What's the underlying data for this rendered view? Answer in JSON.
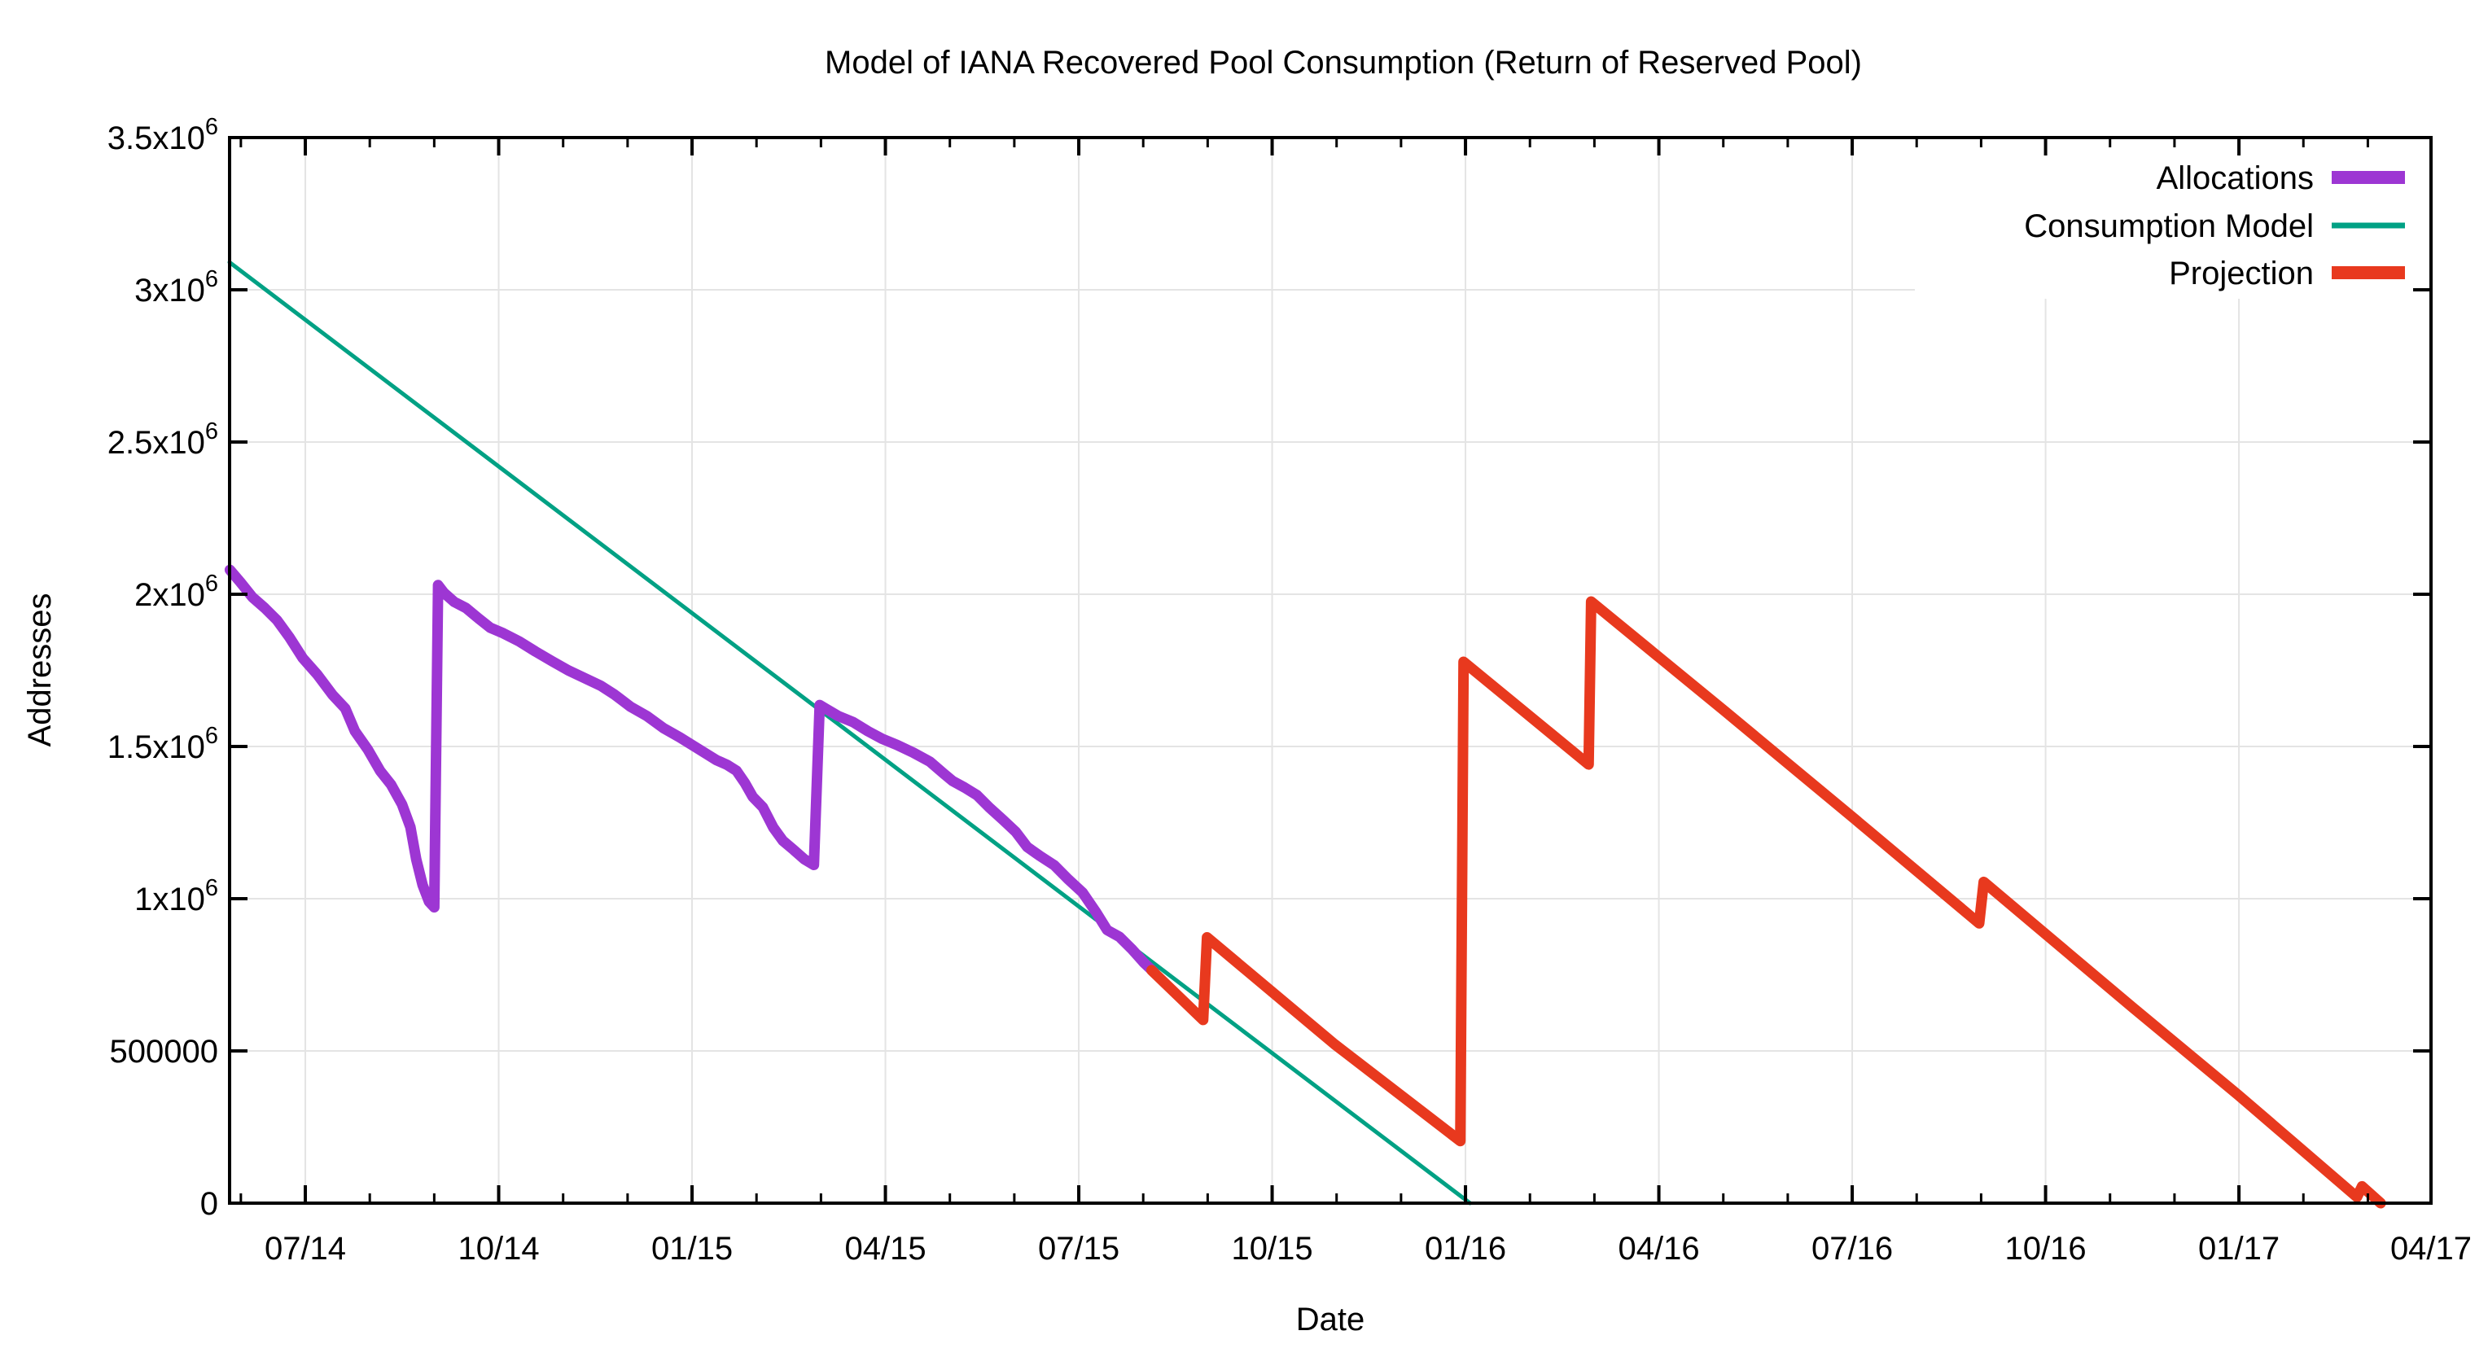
{
  "chart": {
    "title": "Model of IANA Recovered Pool Consumption (Return of Reserved Pool)",
    "xlabel": "Date",
    "ylabel": "Addresses",
    "background": "#ffffff",
    "grid_color": "#e4e4e4",
    "axis_color": "#000000",
    "text_color": "#000000"
  },
  "chart_data": {
    "type": "line",
    "title": "Model of IANA Recovered Pool Consumption (Return of Reserved Pool)",
    "xlabel": "Date",
    "ylabel": "Addresses",
    "x_unit": "months relative to 07/14 tick (major ticks every 3 months, minor ticks monthly)",
    "x_range": [
      -1.175,
      32.98
    ],
    "y_range": [
      0,
      3500000
    ],
    "grid": true,
    "legend_position": "top-right-inside",
    "x_major_ticks": [
      {
        "m": 0,
        "label": "07/14"
      },
      {
        "m": 3,
        "label": "10/14"
      },
      {
        "m": 6,
        "label": "01/15"
      },
      {
        "m": 9,
        "label": "04/15"
      },
      {
        "m": 12,
        "label": "07/15"
      },
      {
        "m": 15,
        "label": "10/15"
      },
      {
        "m": 18,
        "label": "01/16"
      },
      {
        "m": 21,
        "label": "04/16"
      },
      {
        "m": 24,
        "label": "07/16"
      },
      {
        "m": 27,
        "label": "10/16"
      },
      {
        "m": 30,
        "label": "01/17"
      },
      {
        "m": 33,
        "label": "04/17"
      }
    ],
    "x_minor_step": 1,
    "y_ticks": [
      {
        "v": 0,
        "label": "0"
      },
      {
        "v": 500000,
        "label": "500000"
      },
      {
        "v": 1000000,
        "label": "1x10^6"
      },
      {
        "v": 1500000,
        "label": "1.5x10^6"
      },
      {
        "v": 2000000,
        "label": "2x10^6"
      },
      {
        "v": 2500000,
        "label": "2.5x10^6"
      },
      {
        "v": 3000000,
        "label": "3x10^6"
      },
      {
        "v": 3500000,
        "label": "3.5x10^6"
      }
    ],
    "series": [
      {
        "name": "Consumption Model",
        "color": "#00a184",
        "stroke_width": 5,
        "points": [
          [
            -1.175,
            3090000
          ],
          [
            18.07,
            0
          ]
        ]
      },
      {
        "name": "Allocations",
        "color": "#9d36d3",
        "stroke_width": 13,
        "points": [
          [
            -1.17,
            2080000
          ],
          [
            -1.01,
            2040000
          ],
          [
            -0.82,
            1990000
          ],
          [
            -0.63,
            1955000
          ],
          [
            -0.44,
            1915000
          ],
          [
            -0.25,
            1860000
          ],
          [
            -0.04,
            1790000
          ],
          [
            0.19,
            1735000
          ],
          [
            0.42,
            1670000
          ],
          [
            0.62,
            1625000
          ],
          [
            0.77,
            1550000
          ],
          [
            0.97,
            1490000
          ],
          [
            1.16,
            1420000
          ],
          [
            1.33,
            1375000
          ],
          [
            1.5,
            1310000
          ],
          [
            1.63,
            1235000
          ],
          [
            1.72,
            1130000
          ],
          [
            1.82,
            1045000
          ],
          [
            1.92,
            990000
          ],
          [
            2.0,
            972000
          ],
          [
            2.06,
            2030000
          ],
          [
            2.15,
            2005000
          ],
          [
            2.31,
            1975000
          ],
          [
            2.49,
            1955000
          ],
          [
            2.69,
            1920000
          ],
          [
            2.87,
            1890000
          ],
          [
            3.07,
            1872000
          ],
          [
            3.32,
            1845000
          ],
          [
            3.57,
            1812000
          ],
          [
            3.83,
            1780000
          ],
          [
            4.08,
            1750000
          ],
          [
            4.33,
            1725000
          ],
          [
            4.58,
            1700000
          ],
          [
            4.8,
            1670000
          ],
          [
            5.05,
            1630000
          ],
          [
            5.3,
            1600000
          ],
          [
            5.56,
            1560000
          ],
          [
            5.81,
            1530000
          ],
          [
            6.0,
            1505000
          ],
          [
            6.19,
            1480000
          ],
          [
            6.38,
            1455000
          ],
          [
            6.54,
            1440000
          ],
          [
            6.69,
            1420000
          ],
          [
            6.82,
            1380000
          ],
          [
            6.94,
            1335000
          ],
          [
            7.1,
            1300000
          ],
          [
            7.26,
            1234000
          ],
          [
            7.41,
            1190000
          ],
          [
            7.58,
            1160000
          ],
          [
            7.74,
            1130000
          ],
          [
            7.89,
            1111000
          ],
          [
            7.98,
            1636000
          ],
          [
            8.07,
            1625000
          ],
          [
            8.27,
            1600000
          ],
          [
            8.5,
            1580000
          ],
          [
            8.73,
            1550000
          ],
          [
            8.95,
            1525000
          ],
          [
            9.18,
            1505000
          ],
          [
            9.43,
            1480000
          ],
          [
            9.69,
            1450000
          ],
          [
            9.91,
            1410000
          ],
          [
            10.04,
            1387000
          ],
          [
            10.23,
            1365000
          ],
          [
            10.42,
            1340000
          ],
          [
            10.61,
            1300000
          ],
          [
            10.82,
            1260000
          ],
          [
            11.02,
            1220000
          ],
          [
            11.2,
            1170000
          ],
          [
            11.4,
            1140000
          ],
          [
            11.62,
            1110000
          ],
          [
            11.83,
            1065000
          ],
          [
            12.06,
            1020000
          ],
          [
            12.27,
            955000
          ],
          [
            12.44,
            897000
          ],
          [
            12.63,
            875000
          ],
          [
            12.82,
            835000
          ],
          [
            13.01,
            790000
          ],
          [
            13.17,
            758000
          ]
        ]
      },
      {
        "name": "Projection",
        "color": "#e8391e",
        "stroke_width": 13,
        "points": [
          [
            13.13,
            765000
          ],
          [
            13.93,
            602000
          ],
          [
            13.99,
            873000
          ],
          [
            15.97,
            522000
          ],
          [
            17.92,
            204000
          ],
          [
            17.97,
            1778000
          ],
          [
            19.91,
            1441000
          ],
          [
            19.95,
            1976000
          ],
          [
            22.03,
            1615000
          ],
          [
            24.05,
            1260000
          ],
          [
            25.97,
            919000
          ],
          [
            26.04,
            1055000
          ],
          [
            28.35,
            643000
          ],
          [
            29.99,
            355000
          ],
          [
            31.83,
            20000
          ],
          [
            31.91,
            55000
          ],
          [
            32.2,
            0
          ]
        ]
      }
    ],
    "legend_order": [
      "Allocations",
      "Consumption Model",
      "Projection"
    ]
  }
}
